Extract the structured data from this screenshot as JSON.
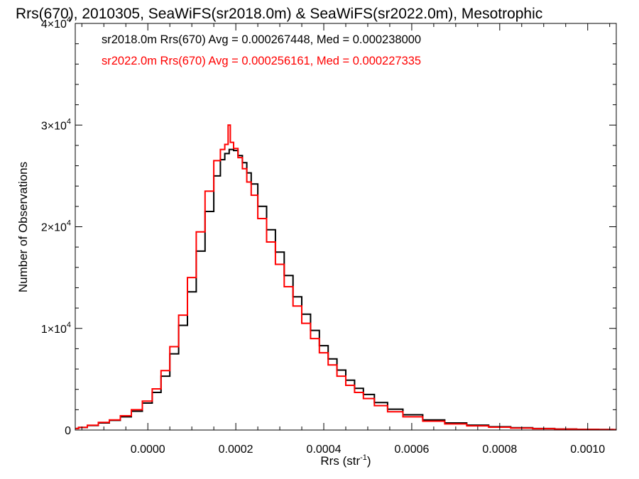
{
  "chart_data": {
    "type": "line",
    "title": "Rrs(670), 2010305, SeaWiFS(sr2018.0m) & SeaWiFS(sr2022.0m), Mesotrophic",
    "xlabel": "Rrs (str",
    "xlabel_sup": "-1",
    "xlabel_end": ")",
    "ylabel": "Number of Observations",
    "xlim": [
      -0.000165,
      0.001065
    ],
    "ylim": [
      0,
      40000
    ],
    "x_ticks": [
      {
        "value": 0.0,
        "label": "0.0000"
      },
      {
        "value": 0.0002,
        "label": "0.0002"
      },
      {
        "value": 0.0004,
        "label": "0.0004"
      },
      {
        "value": 0.0006,
        "label": "0.0006"
      },
      {
        "value": 0.0008,
        "label": "0.0008"
      },
      {
        "value": 0.001,
        "label": "0.0010"
      }
    ],
    "y_ticks": [
      {
        "value": 0,
        "mantissa": "0",
        "exponent": ""
      },
      {
        "value": 10000,
        "mantissa": "1×10",
        "exponent": "4"
      },
      {
        "value": 20000,
        "mantissa": "2×10",
        "exponent": "4"
      },
      {
        "value": 30000,
        "mantissa": "3×10",
        "exponent": "4"
      },
      {
        "value": 40000,
        "mantissa": "4×10",
        "exponent": "4"
      }
    ],
    "grid": false,
    "legend_placement": "top-left",
    "series": [
      {
        "name": "sr2018.0m Rrs(670) Avg = 0.000267448, Med = 0.000238000",
        "color": "#000000",
        "x": [
          -0.000165,
          -0.00015,
          -0.000125,
          -0.0001,
          -7.5e-05,
          -5e-05,
          -2.5e-05,
          0.0,
          2e-05,
          4e-05,
          6e-05,
          8e-05,
          0.0001,
          0.00012,
          0.00014,
          0.00016,
          0.00017,
          0.00018,
          0.00019,
          0.0002,
          0.00021,
          0.00022,
          0.00023,
          0.00024,
          0.00026,
          0.00028,
          0.0003,
          0.00032,
          0.00034,
          0.00036,
          0.00038,
          0.0004,
          0.00042,
          0.00044,
          0.00046,
          0.00048,
          0.0005,
          0.00053,
          0.00056,
          0.0006,
          0.00065,
          0.0007,
          0.00075,
          0.0008,
          0.00085,
          0.0009,
          0.00095,
          0.001,
          0.00105,
          0.001065
        ],
        "y": [
          150,
          250,
          450,
          700,
          950,
          1300,
          1850,
          2650,
          3700,
          5300,
          7500,
          10300,
          13600,
          17600,
          21500,
          25000,
          26600,
          27200,
          27600,
          27500,
          27000,
          26300,
          25300,
          24200,
          22000,
          19700,
          17500,
          15200,
          13100,
          11400,
          9800,
          8300,
          7000,
          5900,
          4900,
          4100,
          3500,
          2700,
          2050,
          1500,
          1000,
          700,
          480,
          320,
          220,
          150,
          100,
          70,
          50,
          40
        ]
      },
      {
        "name": "sr2022.0m Rrs(670) Avg = 0.000256161, Med = 0.000227335",
        "color": "#ff0000",
        "x": [
          -0.000165,
          -0.00015,
          -0.000125,
          -0.0001,
          -7.5e-05,
          -5e-05,
          -2.5e-05,
          0.0,
          2e-05,
          4e-05,
          6e-05,
          8e-05,
          0.0001,
          0.00012,
          0.00014,
          0.00016,
          0.00017,
          0.00018,
          0.000185,
          0.00019,
          0.0002,
          0.00021,
          0.00022,
          0.00023,
          0.00024,
          0.00026,
          0.00028,
          0.0003,
          0.00032,
          0.00034,
          0.00036,
          0.00038,
          0.0004,
          0.00042,
          0.00044,
          0.00046,
          0.00048,
          0.0005,
          0.00053,
          0.00056,
          0.0006,
          0.00065,
          0.0007,
          0.00075,
          0.0008,
          0.00085,
          0.0009,
          0.00095,
          0.001,
          0.00105,
          0.001065
        ],
        "y": [
          150,
          260,
          470,
          750,
          1000,
          1400,
          2000,
          2850,
          4050,
          5850,
          8200,
          11300,
          15000,
          19500,
          23500,
          26500,
          27600,
          28100,
          30000,
          28300,
          27700,
          26800,
          25700,
          24400,
          23100,
          20800,
          18500,
          16300,
          14100,
          12200,
          10500,
          9000,
          7600,
          6400,
          5300,
          4400,
          3700,
          3100,
          2400,
          1800,
          1300,
          870,
          600,
          410,
          280,
          190,
          130,
          90,
          60,
          45,
          35
        ]
      }
    ]
  }
}
